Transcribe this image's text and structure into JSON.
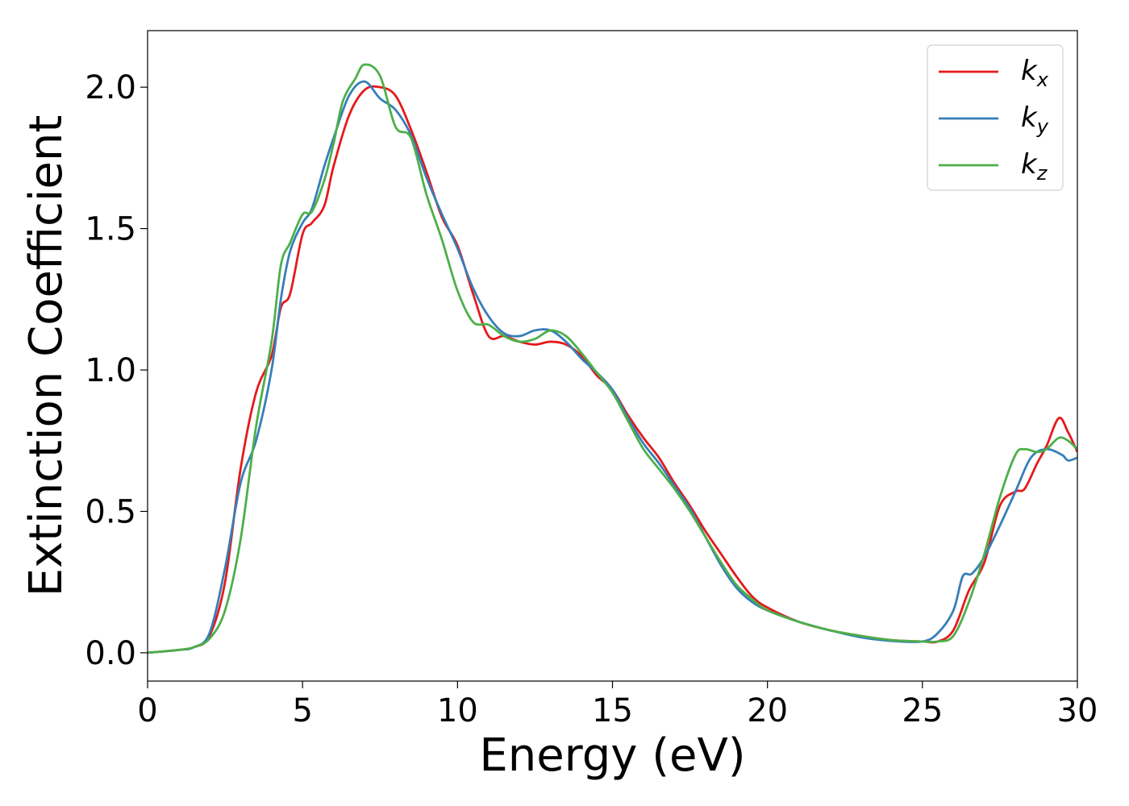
{
  "chart_data": {
    "type": "line",
    "title": "",
    "xlabel": "Energy (eV)",
    "ylabel": "Extinction Coefficient",
    "xlim": [
      0,
      30
    ],
    "ylim": [
      -0.1,
      2.2
    ],
    "x_ticks": [
      0,
      5,
      10,
      15,
      20,
      25,
      30
    ],
    "x_tick_labels": [
      "0",
      "5",
      "10",
      "15",
      "20",
      "25",
      "30"
    ],
    "y_ticks": [
      0.0,
      0.5,
      1.0,
      1.5,
      2.0
    ],
    "y_tick_labels": [
      "0.0",
      "0.5",
      "1.0",
      "1.5",
      "2.0"
    ],
    "grid": false,
    "legend": {
      "placement": "top-right",
      "entries": [
        {
          "base": "k",
          "sub": "x",
          "color": "#e41a1c"
        },
        {
          "base": "k",
          "sub": "y",
          "color": "#377eb8"
        },
        {
          "base": "k",
          "sub": "z",
          "color": "#4daf4a"
        }
      ]
    },
    "series": [
      {
        "name": "k_x",
        "color": "#e41a1c",
        "points": [
          [
            0,
            0.0
          ],
          [
            1,
            0.01
          ],
          [
            1.5,
            0.02
          ],
          [
            2,
            0.06
          ],
          [
            2.5,
            0.25
          ],
          [
            3,
            0.65
          ],
          [
            3.5,
            0.92
          ],
          [
            4,
            1.05
          ],
          [
            4.3,
            1.22
          ],
          [
            4.6,
            1.27
          ],
          [
            5,
            1.48
          ],
          [
            5.3,
            1.52
          ],
          [
            5.7,
            1.58
          ],
          [
            6,
            1.72
          ],
          [
            6.5,
            1.9
          ],
          [
            7,
            1.99
          ],
          [
            7.5,
            2.0
          ],
          [
            8,
            1.97
          ],
          [
            8.5,
            1.85
          ],
          [
            9,
            1.7
          ],
          [
            9.5,
            1.54
          ],
          [
            10,
            1.44
          ],
          [
            10.5,
            1.27
          ],
          [
            11,
            1.12
          ],
          [
            11.5,
            1.12
          ],
          [
            12,
            1.1
          ],
          [
            12.5,
            1.09
          ],
          [
            13,
            1.1
          ],
          [
            13.5,
            1.09
          ],
          [
            14,
            1.05
          ],
          [
            14.5,
            0.98
          ],
          [
            15,
            0.93
          ],
          [
            15.5,
            0.84
          ],
          [
            16,
            0.76
          ],
          [
            16.5,
            0.69
          ],
          [
            17,
            0.6
          ],
          [
            17.5,
            0.52
          ],
          [
            18,
            0.43
          ],
          [
            18.5,
            0.35
          ],
          [
            19,
            0.27
          ],
          [
            19.5,
            0.2
          ],
          [
            20,
            0.16
          ],
          [
            21,
            0.11
          ],
          [
            22,
            0.08
          ],
          [
            23,
            0.06
          ],
          [
            24,
            0.045
          ],
          [
            25,
            0.04
          ],
          [
            25.5,
            0.04
          ],
          [
            26,
            0.08
          ],
          [
            26.5,
            0.22
          ],
          [
            27,
            0.32
          ],
          [
            27.5,
            0.52
          ],
          [
            28,
            0.57
          ],
          [
            28.3,
            0.58
          ],
          [
            28.7,
            0.67
          ],
          [
            29,
            0.73
          ],
          [
            29.4,
            0.83
          ],
          [
            29.7,
            0.78
          ],
          [
            30,
            0.71
          ]
        ]
      },
      {
        "name": "k_y",
        "color": "#377eb8",
        "points": [
          [
            0,
            0.0
          ],
          [
            1,
            0.01
          ],
          [
            1.5,
            0.02
          ],
          [
            2,
            0.07
          ],
          [
            2.5,
            0.3
          ],
          [
            3,
            0.6
          ],
          [
            3.5,
            0.75
          ],
          [
            4,
            1.0
          ],
          [
            4.3,
            1.25
          ],
          [
            4.6,
            1.42
          ],
          [
            5,
            1.52
          ],
          [
            5.3,
            1.57
          ],
          [
            5.7,
            1.72
          ],
          [
            6,
            1.82
          ],
          [
            6.5,
            1.97
          ],
          [
            7,
            2.02
          ],
          [
            7.5,
            1.96
          ],
          [
            8,
            1.92
          ],
          [
            8.5,
            1.83
          ],
          [
            9,
            1.68
          ],
          [
            9.5,
            1.55
          ],
          [
            10,
            1.43
          ],
          [
            10.5,
            1.29
          ],
          [
            11,
            1.19
          ],
          [
            11.5,
            1.13
          ],
          [
            12,
            1.12
          ],
          [
            12.5,
            1.14
          ],
          [
            13,
            1.14
          ],
          [
            13.5,
            1.1
          ],
          [
            14,
            1.04
          ],
          [
            14.5,
            0.99
          ],
          [
            15,
            0.93
          ],
          [
            15.5,
            0.83
          ],
          [
            16,
            0.74
          ],
          [
            16.5,
            0.67
          ],
          [
            17,
            0.59
          ],
          [
            17.5,
            0.51
          ],
          [
            18,
            0.41
          ],
          [
            18.5,
            0.31
          ],
          [
            19,
            0.23
          ],
          [
            19.5,
            0.18
          ],
          [
            20,
            0.15
          ],
          [
            21,
            0.11
          ],
          [
            22,
            0.08
          ],
          [
            23,
            0.055
          ],
          [
            24,
            0.042
          ],
          [
            25,
            0.04
          ],
          [
            25.5,
            0.07
          ],
          [
            26,
            0.15
          ],
          [
            26.3,
            0.27
          ],
          [
            26.6,
            0.28
          ],
          [
            27,
            0.34
          ],
          [
            27.5,
            0.45
          ],
          [
            28,
            0.57
          ],
          [
            28.5,
            0.69
          ],
          [
            29,
            0.72
          ],
          [
            29.5,
            0.7
          ],
          [
            29.7,
            0.68
          ],
          [
            30,
            0.69
          ]
        ]
      },
      {
        "name": "k_z",
        "color": "#4daf4a",
        "points": [
          [
            0,
            0.0
          ],
          [
            1,
            0.01
          ],
          [
            1.5,
            0.02
          ],
          [
            2,
            0.05
          ],
          [
            2.5,
            0.15
          ],
          [
            3,
            0.4
          ],
          [
            3.5,
            0.8
          ],
          [
            4,
            1.1
          ],
          [
            4.3,
            1.37
          ],
          [
            4.6,
            1.45
          ],
          [
            5,
            1.55
          ],
          [
            5.3,
            1.56
          ],
          [
            5.7,
            1.67
          ],
          [
            6,
            1.8
          ],
          [
            6.3,
            1.95
          ],
          [
            6.7,
            2.03
          ],
          [
            7,
            2.08
          ],
          [
            7.5,
            2.04
          ],
          [
            8,
            1.86
          ],
          [
            8.5,
            1.82
          ],
          [
            9,
            1.62
          ],
          [
            9.5,
            1.46
          ],
          [
            10,
            1.28
          ],
          [
            10.5,
            1.17
          ],
          [
            11,
            1.16
          ],
          [
            11.5,
            1.12
          ],
          [
            12,
            1.1
          ],
          [
            12.5,
            1.11
          ],
          [
            13,
            1.14
          ],
          [
            13.5,
            1.12
          ],
          [
            14,
            1.06
          ],
          [
            14.5,
            0.99
          ],
          [
            15,
            0.92
          ],
          [
            15.5,
            0.82
          ],
          [
            16,
            0.72
          ],
          [
            16.5,
            0.65
          ],
          [
            17,
            0.58
          ],
          [
            17.5,
            0.5
          ],
          [
            18,
            0.41
          ],
          [
            18.5,
            0.32
          ],
          [
            19,
            0.24
          ],
          [
            19.5,
            0.19
          ],
          [
            20,
            0.15
          ],
          [
            21,
            0.11
          ],
          [
            22,
            0.08
          ],
          [
            23,
            0.06
          ],
          [
            24,
            0.045
          ],
          [
            25,
            0.04
          ],
          [
            25.5,
            0.04
          ],
          [
            26,
            0.06
          ],
          [
            26.5,
            0.18
          ],
          [
            27,
            0.35
          ],
          [
            27.5,
            0.55
          ],
          [
            28,
            0.7
          ],
          [
            28.3,
            0.72
          ],
          [
            28.7,
            0.71
          ],
          [
            29,
            0.72
          ],
          [
            29.4,
            0.76
          ],
          [
            29.7,
            0.75
          ],
          [
            30,
            0.72
          ]
        ]
      }
    ]
  }
}
